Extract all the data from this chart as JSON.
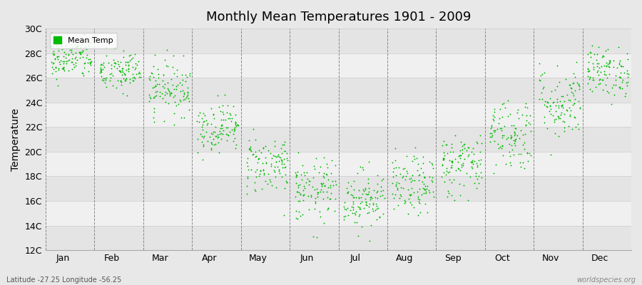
{
  "title": "Monthly Mean Temperatures 1901 - 2009",
  "ylabel": "Temperature",
  "background_color": "#e8e8e8",
  "plot_bg_light": "#f0f0f0",
  "plot_bg_dark": "#e4e4e4",
  "dot_color": "#00bb00",
  "dot_size": 3,
  "ylim": [
    12,
    30
  ],
  "yticks": [
    12,
    14,
    16,
    18,
    20,
    22,
    24,
    26,
    28,
    30
  ],
  "ytick_labels": [
    "12C",
    "14C",
    "16C",
    "18C",
    "20C",
    "22C",
    "24C",
    "26C",
    "28C",
    "30C"
  ],
  "months": [
    "Jan",
    "Feb",
    "Mar",
    "Apr",
    "May",
    "Jun",
    "Jul",
    "Aug",
    "Sep",
    "Oct",
    "Nov",
    "Dec"
  ],
  "footer_left": "Latitude -27.25 Longitude -56.25",
  "footer_right": "worldspecies.org",
  "legend_label": "Mean Temp",
  "monthly_mean_temps": [
    27.5,
    26.5,
    25.2,
    22.0,
    19.0,
    16.8,
    16.2,
    17.2,
    19.0,
    21.5,
    24.0,
    26.5
  ],
  "monthly_std_temps": [
    0.8,
    0.9,
    1.1,
    1.0,
    1.2,
    1.3,
    1.2,
    1.2,
    1.3,
    1.5,
    1.5,
    1.0
  ],
  "n_years": 109,
  "seed": 42,
  "dashed_line_color": "#888888",
  "grid_color": "#cccccc"
}
